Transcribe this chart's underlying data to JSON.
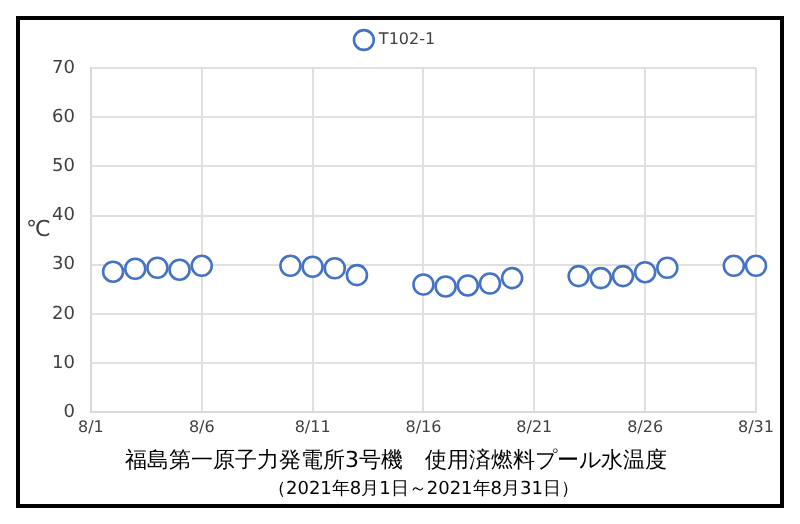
{
  "chart_data": {
    "type": "scatter",
    "title": "福島第一原子力発電所3号機　使用済燃料プール水温度",
    "subtitle": "（2021年8月1日～2021年8月31日）",
    "ylabel": "℃",
    "x": [
      "2021-08-02",
      "2021-08-03",
      "2021-08-04",
      "2021-08-05",
      "2021-08-06",
      "2021-08-10",
      "2021-08-11",
      "2021-08-12",
      "2021-08-13",
      "2021-08-16",
      "2021-08-17",
      "2021-08-18",
      "2021-08-19",
      "2021-08-20",
      "2021-08-23",
      "2021-08-24",
      "2021-08-25",
      "2021-08-26",
      "2021-08-27",
      "2021-08-30",
      "2021-08-31"
    ],
    "series": [
      {
        "name": "T102-1",
        "color": "#4472c4",
        "values": [
          28.6,
          29.2,
          29.4,
          29.0,
          29.8,
          29.8,
          29.6,
          29.3,
          27.9,
          26.0,
          25.6,
          25.8,
          26.2,
          27.3,
          27.7,
          27.3,
          27.7,
          28.5,
          29.4,
          29.8,
          29.8
        ]
      }
    ],
    "xlim": [
      "2021-08-01",
      "2021-08-31"
    ],
    "xticks": [
      {
        "value": "2021-08-01",
        "label": "8/1"
      },
      {
        "value": "2021-08-06",
        "label": "8/6"
      },
      {
        "value": "2021-08-11",
        "label": "8/11"
      },
      {
        "value": "2021-08-16",
        "label": "8/16"
      },
      {
        "value": "2021-08-21",
        "label": "8/21"
      },
      {
        "value": "2021-08-26",
        "label": "8/26"
      },
      {
        "value": "2021-08-31",
        "label": "8/31"
      }
    ],
    "ylim": [
      0,
      70
    ],
    "yticks": [
      0,
      10,
      20,
      30,
      40,
      50,
      60,
      70
    ],
    "grid": true,
    "legend": "top",
    "marker": "circle"
  }
}
